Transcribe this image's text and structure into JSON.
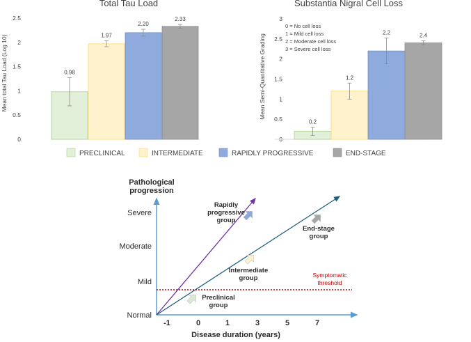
{
  "chart_data": [
    {
      "type": "bar",
      "title": "Total Tau Load",
      "ylabel": "Mean total Tau Load (Log 10)",
      "ylim": [
        0,
        2.5
      ],
      "yticks": [
        "0",
        "0.5",
        "1",
        "1.5",
        "2",
        "2.5"
      ],
      "categories": [
        "PRECLINICAL",
        "INTERMEDIATE",
        "RAPIDLY PROGRESSIVE",
        "END-STAGE"
      ],
      "values": [
        0.98,
        1.97,
        2.2,
        2.33
      ],
      "value_labels": [
        "0.98",
        "1.97",
        "2.20",
        "2.33"
      ],
      "errors": [
        0.29,
        0.06,
        0.07,
        0.04
      ]
    },
    {
      "type": "bar",
      "title": "Substantia Nigral Cell Loss",
      "ylabel": "Mean Semi-Quantitative Grading",
      "ylim": [
        0,
        3
      ],
      "yticks": [
        "0",
        "0.5",
        "1",
        "1.5",
        "2",
        "2.5",
        "3"
      ],
      "categories": [
        "PRECLINICAL",
        "INTERMEDIATE",
        "RAPIDLY PROGRESSIVE",
        "END-STAGE"
      ],
      "values": [
        0.2,
        1.2,
        2.2,
        2.4
      ],
      "value_labels": [
        "0.2",
        "1.2",
        "2.2",
        "2.4"
      ],
      "errors": [
        0.1,
        0.2,
        0.32,
        0.05
      ],
      "annotations": [
        "0 = No cell loss",
        "1 = Mild cell loss",
        "2 = Moderate cell loss",
        "3 = Severe cell loss"
      ]
    },
    {
      "type": "line",
      "ylabel": "Pathological progression",
      "xlabel": "Disease duration (years)",
      "x_ticks": [
        "-1",
        "0",
        "1",
        "3",
        "5",
        "7"
      ],
      "y_levels": [
        "Normal",
        "Mild",
        "Moderate",
        "Severe"
      ],
      "groups": [
        {
          "label": "Preclinical group",
          "color": "#d9ead3"
        },
        {
          "label": "Intermediate group",
          "color": "#fff2cc"
        },
        {
          "label": "Rapidly progressive group",
          "color": "#8eaadb"
        },
        {
          "label": "End-stage group",
          "color": "#a6a6a6"
        }
      ],
      "threshold_label": "Symptomatic threshold",
      "lines": [
        {
          "name": "rapid",
          "color": "#7030a0"
        },
        {
          "name": "slow",
          "color": "#1f5f7f"
        }
      ]
    }
  ],
  "legend": {
    "items": [
      {
        "label": "PRECLINICAL",
        "color": "#e2efd9",
        "border": "#a9d18e"
      },
      {
        "label": "INTERMEDIATE",
        "color": "#fff2cc",
        "border": "#ffd966"
      },
      {
        "label": "RAPIDLY PROGRESSIVE",
        "color": "#8faadc",
        "border": "#6f8fc9"
      },
      {
        "label": "END-STAGE",
        "color": "#a6a6a6",
        "border": "#8c8c8c"
      }
    ]
  },
  "colors": {
    "bar_fills": [
      "#e2efd9",
      "#fff2cc",
      "#8faadc",
      "#a6a6a6"
    ],
    "bar_borders": [
      "#a9d18e",
      "#ffd966",
      "#6f8fc9",
      "#8c8c8c"
    ],
    "axis": "#d9d9d9",
    "diagram_axis": "#5b9bd5",
    "threshold": "#c00000"
  }
}
